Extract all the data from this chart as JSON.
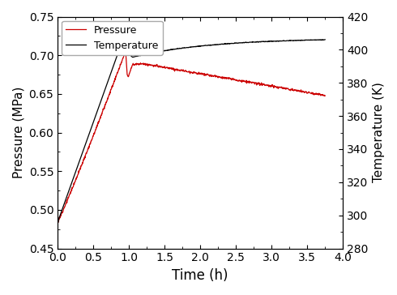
{
  "title": "",
  "xlabel": "Time (h)",
  "ylabel_left": "Pressure (MPa)",
  "ylabel_right": "Temperature (K)",
  "xlim": [
    0.0,
    4.0
  ],
  "ylim_left": [
    0.45,
    0.75
  ],
  "ylim_right": [
    280,
    420
  ],
  "xticks": [
    0.0,
    0.5,
    1.0,
    1.5,
    2.0,
    2.5,
    3.0,
    3.5,
    4.0
  ],
  "yticks_left": [
    0.45,
    0.5,
    0.55,
    0.6,
    0.65,
    0.7,
    0.75
  ],
  "yticks_right": [
    280,
    300,
    320,
    340,
    360,
    380,
    400,
    420
  ],
  "pressure_color": "#CC0000",
  "temperature_color": "#000000",
  "pressure_label": "Pressure",
  "temperature_label": "Temperature",
  "background_color": "#ffffff",
  "figsize": [
    4.9,
    3.64
  ],
  "dpi": 100
}
